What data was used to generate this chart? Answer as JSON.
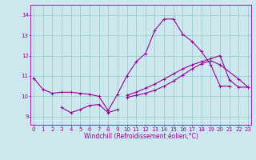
{
  "xlabel": "Windchill (Refroidissement éolien,°C)",
  "background_color": "#cce8ee",
  "grid_color": "#99cccc",
  "line_color": "#990099",
  "x_ticks": [
    0,
    1,
    2,
    3,
    4,
    5,
    6,
    7,
    8,
    9,
    10,
    11,
    12,
    13,
    14,
    15,
    16,
    17,
    18,
    19,
    20,
    21,
    22,
    23
  ],
  "y_ticks": [
    9,
    10,
    11,
    12,
    13,
    14
  ],
  "ylim": [
    8.6,
    14.5
  ],
  "xlim": [
    -0.3,
    23.3
  ],
  "series": [
    {
      "x": [
        0,
        1,
        2,
        3,
        4,
        5,
        6,
        7,
        8,
        9,
        10,
        11,
        12,
        13,
        14,
        15,
        16,
        17,
        18,
        19,
        20,
        21
      ],
      "y": [
        10.9,
        10.35,
        10.15,
        10.2,
        10.2,
        10.15,
        10.1,
        10.0,
        9.3,
        10.1,
        11.0,
        11.7,
        12.1,
        13.25,
        13.8,
        13.8,
        13.05,
        12.7,
        12.2,
        11.55,
        10.5,
        10.5
      ]
    },
    {
      "x": [
        3,
        4,
        5,
        6,
        7,
        8,
        9
      ],
      "y": [
        9.45,
        9.2,
        9.35,
        9.55,
        9.6,
        9.2,
        9.35
      ]
    },
    {
      "x": [
        10,
        11,
        12,
        13,
        14,
        15,
        16,
        17,
        18,
        19,
        20,
        21,
        22,
        23
      ],
      "y": [
        10.05,
        10.2,
        10.4,
        10.6,
        10.85,
        11.1,
        11.35,
        11.55,
        11.7,
        11.85,
        12.0,
        10.8,
        10.45,
        10.45
      ]
    },
    {
      "x": [
        10,
        11,
        12,
        13,
        14,
        15,
        16,
        17,
        18,
        19,
        20,
        22,
        23
      ],
      "y": [
        9.95,
        10.05,
        10.15,
        10.3,
        10.5,
        10.75,
        11.05,
        11.35,
        11.6,
        11.75,
        11.55,
        10.85,
        10.45
      ]
    }
  ],
  "tick_fontsize": 5,
  "xlabel_fontsize": 5.5
}
